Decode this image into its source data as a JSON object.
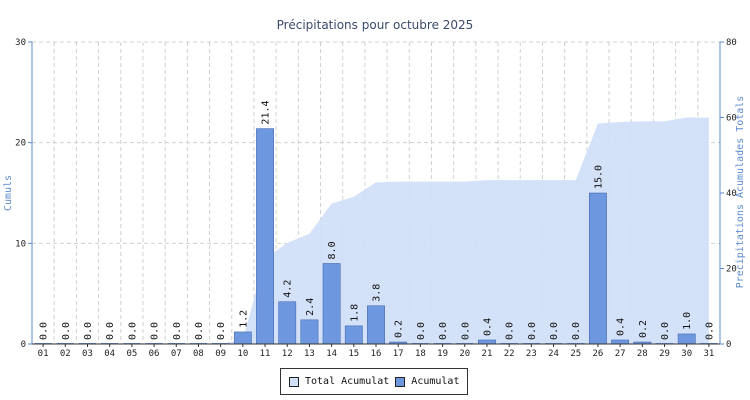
{
  "chart_data": {
    "type": "bar",
    "title": "Précipitations pour octubre 2025",
    "ylabel_left": "Cumuls",
    "ylabel_right": "Precipitations Acumulades Totals",
    "ylim_left": [
      0,
      30
    ],
    "ylim_right": [
      0,
      80
    ],
    "yticks_left": [
      0,
      10,
      20,
      30
    ],
    "yticks_right": [
      0,
      20,
      40,
      60,
      80
    ],
    "grid": true,
    "legend_position": "bottom",
    "categories": [
      "01",
      "02",
      "03",
      "04",
      "05",
      "06",
      "07",
      "08",
      "09",
      "10",
      "11",
      "12",
      "13",
      "14",
      "15",
      "16",
      "17",
      "18",
      "19",
      "20",
      "21",
      "22",
      "23",
      "24",
      "25",
      "26",
      "27",
      "28",
      "29",
      "30",
      "31"
    ],
    "series": [
      {
        "name": "Acumulat",
        "type": "bar",
        "axis": "left",
        "color": "#6d97df",
        "values": [
          0.0,
          0.0,
          0.0,
          0.0,
          0.0,
          0.0,
          0.0,
          0.0,
          0.0,
          1.2,
          21.4,
          4.2,
          2.4,
          8.0,
          1.8,
          3.8,
          0.2,
          0.0,
          0.0,
          0.0,
          0.4,
          0.0,
          0.0,
          0.0,
          0.0,
          15.0,
          0.4,
          0.2,
          0.0,
          1.0,
          0.0
        ],
        "labels": [
          "0.0",
          "0.0",
          "0.0",
          "0.0",
          "0.0",
          "0.0",
          "0.0",
          "0.0",
          "0.0",
          "1.2",
          "21.4",
          "4.2",
          "2.4",
          "8.0",
          "1.8",
          "3.8",
          "0.2",
          "0.0",
          "0.0",
          "0.0",
          "0.4",
          "0.0",
          "0.0",
          "0.0",
          "0.0",
          "15.0",
          "0.4",
          "0.2",
          "0.0",
          "1.0",
          "0.0"
        ]
      },
      {
        "name": "Total Acumulat",
        "type": "area",
        "axis": "right",
        "color": "#cfdff8",
        "values": [
          0.0,
          0.0,
          0.0,
          0.0,
          0.0,
          0.0,
          0.0,
          0.0,
          0.0,
          1.2,
          22.6,
          26.8,
          29.2,
          37.2,
          39.0,
          42.8,
          43.0,
          43.0,
          43.0,
          43.0,
          43.4,
          43.4,
          43.4,
          43.4,
          43.4,
          58.4,
          58.8,
          59.0,
          59.0,
          60.0,
          60.0
        ]
      }
    ]
  }
}
